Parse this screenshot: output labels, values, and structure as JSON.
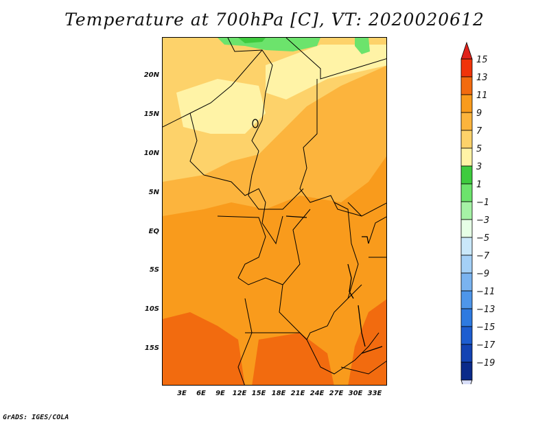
{
  "title": "Temperature at 700hPa [C], VT: 2020020612",
  "credit": "GrADS: IGES/COLA",
  "map": {
    "region": "Central Africa",
    "lat_labels": [
      "20N",
      "15N",
      "10N",
      "5N",
      "EQ",
      "5S",
      "10S",
      "15S"
    ],
    "lon_labels": [
      "3E",
      "6E",
      "9E",
      "12E",
      "15E",
      "18E",
      "21E",
      "24E",
      "27E",
      "30E",
      "33E"
    ],
    "field_colors": {
      "warmest": "#f26b0f",
      "warm": "#f99b1c",
      "mid": "#fcb43d",
      "cool": "#fdd26a",
      "coolest": "#fff3a6",
      "green_light": "#6ce36c",
      "green": "#3ecb3e"
    }
  },
  "colorbar": {
    "labels": [
      "15",
      "13",
      "11",
      "9",
      "7",
      "5",
      "3",
      "1",
      "−1",
      "−3",
      "−5",
      "−7",
      "−9",
      "−11",
      "−13",
      "−15",
      "−17",
      "−19"
    ],
    "colors": [
      "#f0340a",
      "#f26b0f",
      "#f99b1c",
      "#fcb43d",
      "#fdd26a",
      "#fff3a6",
      "#3ecb3e",
      "#6ce36c",
      "#a6f2a6",
      "#e6ffe6",
      "#cae8fa",
      "#a4d0f7",
      "#7ab3f0",
      "#4e96ea",
      "#2e7ae0",
      "#1d5dd0",
      "#1343b3",
      "#0a2a8a"
    ],
    "top_arrow_color": "#e0221b",
    "bottom_arrow_color": "#d8def8"
  }
}
